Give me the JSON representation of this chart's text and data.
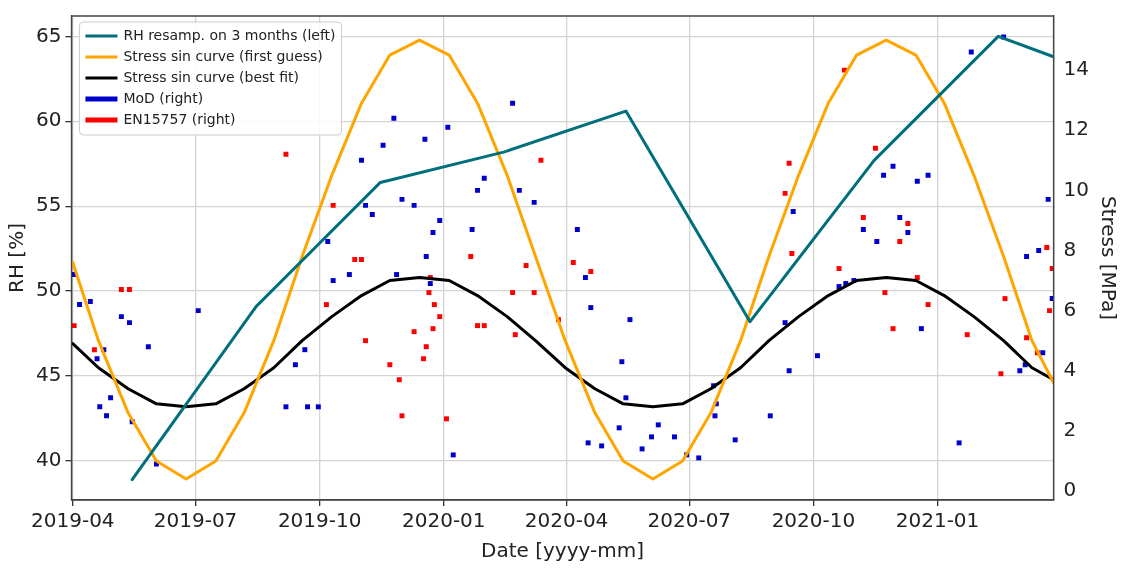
{
  "chart_data": {
    "type": "line",
    "xlabel": "Date [yyyy-mm]",
    "ylabel": "RH [%]",
    "y2label": "Stress [MPa]",
    "xlim": [
      "2019-03-31",
      "2021-03-28"
    ],
    "xticks": [
      "2019-04",
      "2019-07",
      "2019-10",
      "2020-01",
      "2020-04",
      "2020-07",
      "2020-10",
      "2021-01"
    ],
    "ylim": [
      37.7,
      66.2
    ],
    "yticks": [
      40,
      45,
      50,
      55,
      60,
      65
    ],
    "y2lim": [
      -0.3,
      15.8
    ],
    "y2ticks": [
      0,
      2,
      4,
      6,
      8,
      10,
      12,
      14
    ],
    "grid": true,
    "legend": "top left",
    "series": [
      {
        "name": "RH resamp. on 3 months (left)",
        "color": "#006f7c",
        "marker": "none",
        "x": [
          "2019-05-15",
          "2019-08-15",
          "2019-11-15",
          "2020-02-15",
          "2020-05-15",
          "2020-08-15",
          "2020-11-15",
          "2021-02-15",
          "2021-03-28"
        ],
        "values": [
          38.9,
          49.1,
          56.4,
          58.2,
          60.6,
          48.2,
          57.7,
          65.0,
          63.8
        ]
      },
      {
        "name": "Stress sin curve (first guess)",
        "axis": "y2",
        "color": "#ffa500",
        "marker": "none",
        "x": [
          "2019-04-01",
          "2019-04-20",
          "2019-05-12",
          "2019-06-02",
          "2019-06-24",
          "2019-07-16",
          "2019-08-06",
          "2019-08-28",
          "2019-09-18",
          "2019-10-10",
          "2019-11-01",
          "2019-11-22",
          "2019-12-14",
          "2020-01-05",
          "2020-01-26",
          "2020-02-17",
          "2020-03-09",
          "2020-03-31",
          "2020-04-22",
          "2020-05-13",
          "2020-06-04",
          "2020-06-26",
          "2020-07-17",
          "2020-08-08",
          "2020-08-29",
          "2020-09-20",
          "2020-10-12",
          "2020-11-02",
          "2020-11-24",
          "2020-12-16",
          "2021-01-06",
          "2021-01-28",
          "2021-02-19",
          "2021-03-12",
          "2021-03-28"
        ],
        "values": [
          7.6,
          5.0,
          2.6,
          1.0,
          0.4,
          1.0,
          2.6,
          5.0,
          7.8,
          10.5,
          12.9,
          14.5,
          15.0,
          14.5,
          12.9,
          10.5,
          7.8,
          5.0,
          2.6,
          1.0,
          0.4,
          1.0,
          2.6,
          5.0,
          7.8,
          10.5,
          12.9,
          14.5,
          15.0,
          14.5,
          12.9,
          10.5,
          7.8,
          5.0,
          3.6
        ]
      },
      {
        "name": "Stress sin curve (best fit)",
        "axis": "y2",
        "color": "#000000",
        "marker": "none",
        "x": [
          "2019-04-01",
          "2019-04-20",
          "2019-05-12",
          "2019-06-02",
          "2019-06-24",
          "2019-07-16",
          "2019-08-06",
          "2019-08-28",
          "2019-09-18",
          "2019-10-10",
          "2019-11-01",
          "2019-11-22",
          "2019-12-14",
          "2020-01-05",
          "2020-01-26",
          "2020-02-17",
          "2020-03-09",
          "2020-03-31",
          "2020-04-22",
          "2020-05-13",
          "2020-06-04",
          "2020-06-26",
          "2020-07-17",
          "2020-08-08",
          "2020-08-29",
          "2020-09-20",
          "2020-10-12",
          "2020-11-02",
          "2020-11-24",
          "2020-12-16",
          "2021-01-06",
          "2021-01-28",
          "2021-02-19",
          "2021-03-12",
          "2021-03-28"
        ],
        "values": [
          4.9,
          4.1,
          3.4,
          2.9,
          2.8,
          2.9,
          3.4,
          4.1,
          5.0,
          5.8,
          6.5,
          7.0,
          7.1,
          7.0,
          6.5,
          5.8,
          5.0,
          4.1,
          3.4,
          2.9,
          2.8,
          2.9,
          3.4,
          4.1,
          5.0,
          5.8,
          6.5,
          7.0,
          7.1,
          7.0,
          6.5,
          5.8,
          5.0,
          4.1,
          3.7
        ]
      },
      {
        "name": "MoD (right)",
        "type": "scatter",
        "axis": "y2",
        "color": "#0000cc",
        "marker": "square",
        "x": [
          "2019-04-02",
          "2019-04-06",
          "2019-04-14",
          "2019-04-19",
          "2019-04-21",
          "2019-04-24",
          "2019-04-26",
          "2019-04-29",
          "2019-05-07",
          "2019-05-13",
          "2019-05-15",
          "2019-05-27",
          "2019-06-02",
          "2019-07-03",
          "2019-09-06",
          "2019-09-13",
          "2019-09-20",
          "2019-09-22",
          "2019-09-30",
          "2019-10-07",
          "2019-10-11",
          "2019-10-23",
          "2019-11-01",
          "2019-11-04",
          "2019-11-09",
          "2019-11-17",
          "2019-11-25",
          "2019-11-27",
          "2019-12-01",
          "2019-12-10",
          "2019-12-18",
          "2019-12-19",
          "2019-12-22",
          "2019-12-24",
          "2019-12-29",
          "2020-01-04",
          "2020-01-08",
          "2020-01-22",
          "2020-01-26",
          "2020-01-31",
          "2020-02-21",
          "2020-02-26",
          "2020-03-08",
          "2020-04-09",
          "2020-04-15",
          "2020-04-17",
          "2020-04-19",
          "2020-04-27",
          "2020-05-10",
          "2020-05-12",
          "2020-05-15",
          "2020-05-18",
          "2020-05-27",
          "2020-06-03",
          "2020-06-08",
          "2020-06-20",
          "2020-06-29",
          "2020-07-08",
          "2020-07-19",
          "2020-07-20",
          "2020-07-21",
          "2020-08-04",
          "2020-08-30",
          "2020-09-10",
          "2020-09-13",
          "2020-09-16",
          "2020-10-04",
          "2020-10-20",
          "2020-10-25",
          "2020-10-31",
          "2020-11-07",
          "2020-11-17",
          "2020-11-22",
          "2020-11-29",
          "2020-12-04",
          "2020-12-10",
          "2020-12-17",
          "2020-12-20",
          "2020-12-25",
          "2021-01-17",
          "2021-01-26",
          "2021-02-19",
          "2021-03-03",
          "2021-03-07",
          "2021-03-08",
          "2021-03-17",
          "2021-03-20",
          "2021-03-24",
          "2021-03-27"
        ],
        "values": [
          7.2,
          6.2,
          6.3,
          4.4,
          2.8,
          4.7,
          2.5,
          3.1,
          5.8,
          5.6,
          2.3,
          4.8,
          0.9,
          6.0,
          2.8,
          4.2,
          4.7,
          2.8,
          2.8,
          8.3,
          7.0,
          7.2,
          11.0,
          9.5,
          9.2,
          11.5,
          12.4,
          7.2,
          9.7,
          9.5,
          11.7,
          7.8,
          6.9,
          8.6,
          9.0,
          12.1,
          1.2,
          8.7,
          10.0,
          10.4,
          12.9,
          10.0,
          9.6,
          8.7,
          7.1,
          1.6,
          6.1,
          1.5,
          2.1,
          4.3,
          3.1,
          5.7,
          1.4,
          1.8,
          2.2,
          1.8,
          1.2,
          1.1,
          3.5,
          2.5,
          2.9,
          1.7,
          2.5,
          5.6,
          4.0,
          9.3,
          4.5,
          6.8,
          6.9,
          7.0,
          8.7,
          8.3,
          10.5,
          10.8,
          9.1,
          8.6,
          10.3,
          5.4,
          10.5,
          1.6,
          14.6,
          15.1,
          4.0,
          4.2,
          7.8,
          8.0,
          4.6,
          9.7,
          6.4
        ]
      },
      {
        "name": "EN15757 (right)",
        "type": "scatter",
        "axis": "y2",
        "color": "#ff0000",
        "marker": "square",
        "x": [
          "2019-04-02",
          "2019-04-17",
          "2019-05-07",
          "2019-05-13",
          "2019-09-06",
          "2019-10-06",
          "2019-10-11",
          "2019-10-27",
          "2019-11-01",
          "2019-11-04",
          "2019-11-22",
          "2019-11-29",
          "2019-12-01",
          "2019-12-10",
          "2019-12-17",
          "2019-12-19",
          "2019-12-21",
          "2019-12-22",
          "2019-12-24",
          "2019-12-25",
          "2019-12-29",
          "2020-01-03",
          "2020-01-21",
          "2020-01-26",
          "2020-01-31",
          "2020-02-21",
          "2020-02-23",
          "2020-03-02",
          "2020-03-08",
          "2020-03-13",
          "2020-03-26",
          "2020-04-06",
          "2020-04-19",
          "2020-09-10",
          "2020-09-13",
          "2020-09-15",
          "2020-10-20",
          "2020-10-24",
          "2020-11-07",
          "2020-11-16",
          "2020-11-23",
          "2020-11-29",
          "2020-12-04",
          "2020-12-10",
          "2020-12-17",
          "2020-12-25",
          "2021-01-23",
          "2021-02-17",
          "2021-02-20",
          "2021-03-08",
          "2021-03-16",
          "2021-03-23",
          "2021-03-25",
          "2021-03-27"
        ],
        "values": [
          5.5,
          4.7,
          6.7,
          6.7,
          11.2,
          6.2,
          9.5,
          7.7,
          7.7,
          5.0,
          4.2,
          3.7,
          2.5,
          5.3,
          4.4,
          4.8,
          6.6,
          7.1,
          5.4,
          6.2,
          5.8,
          2.4,
          7.8,
          5.5,
          5.5,
          6.6,
          5.2,
          7.5,
          6.6,
          11.0,
          5.7,
          7.6,
          7.3,
          9.9,
          10.9,
          7.9,
          7.4,
          14.0,
          9.1,
          11.4,
          6.6,
          5.4,
          8.3,
          8.9,
          7.1,
          6.2,
          5.2,
          3.9,
          6.4,
          5.1,
          4.6,
          8.1,
          6.0,
          7.4
        ]
      }
    ]
  }
}
